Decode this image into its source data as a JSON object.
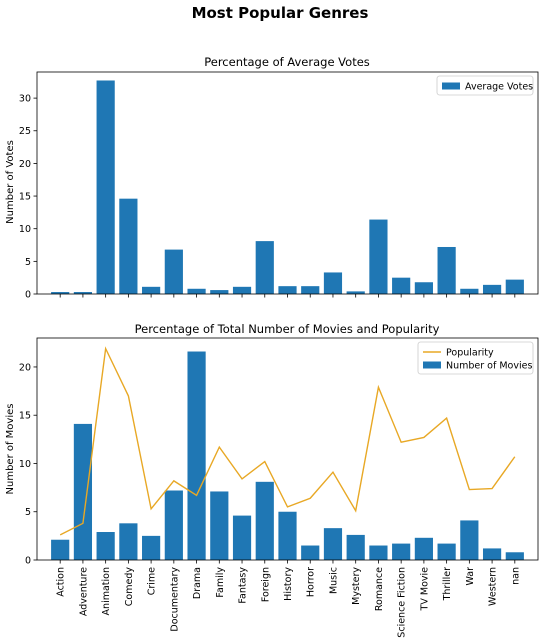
{
  "figure": {
    "title": "Most Popular Genres"
  },
  "colors": {
    "bar": "#1f77b4",
    "line": "#e8a825"
  },
  "chart_data": [
    {
      "type": "bar",
      "title": "Percentage of Average Votes",
      "xlabel": "",
      "ylabel": "Number of Votes",
      "ylim": [
        0,
        34
      ],
      "yticks": [
        0,
        5,
        10,
        15,
        20,
        25,
        30
      ],
      "categories": [
        "Action",
        "Adventure",
        "Animation",
        "Comedy",
        "Crime",
        "Documentary",
        "Drama",
        "Family",
        "Fantasy",
        "Foreign",
        "History",
        "Horror",
        "Music",
        "Mystery",
        "Romance",
        "Science Fiction",
        "TV Movie",
        "Thriller",
        "War",
        "Western",
        "nan"
      ],
      "show_xticklabels": false,
      "series": [
        {
          "name": "Average Votes",
          "kind": "bar",
          "values": [
            0.3,
            0.3,
            32.7,
            14.6,
            1.1,
            6.8,
            0.8,
            0.6,
            1.1,
            8.1,
            1.2,
            1.2,
            3.3,
            0.4,
            11.4,
            2.5,
            1.8,
            7.2,
            0.8,
            1.4,
            2.2
          ]
        }
      ],
      "legend": "top-right",
      "grid": false
    },
    {
      "type": "bar",
      "title": "Percentage of Total Number of Movies and Popularity",
      "xlabel": "",
      "ylabel": "Number of Movies",
      "ylim": [
        0,
        23
      ],
      "yticks": [
        0,
        5,
        10,
        15,
        20
      ],
      "categories": [
        "Action",
        "Adventure",
        "Animation",
        "Comedy",
        "Crime",
        "Documentary",
        "Drama",
        "Family",
        "Fantasy",
        "Foreign",
        "History",
        "Horror",
        "Music",
        "Mystery",
        "Romance",
        "Science Fiction",
        "TV Movie",
        "Thriller",
        "War",
        "Western",
        "nan"
      ],
      "show_xticklabels": true,
      "series": [
        {
          "name": "Popularity",
          "kind": "line",
          "values": [
            2.6,
            3.8,
            21.9,
            17.0,
            5.3,
            8.2,
            6.7,
            11.7,
            8.4,
            10.2,
            5.5,
            6.4,
            9.1,
            5.1,
            17.9,
            12.2,
            12.7,
            14.7,
            7.3,
            7.4,
            10.7
          ]
        },
        {
          "name": "Number of Movies",
          "kind": "bar",
          "values": [
            2.1,
            14.1,
            2.9,
            3.8,
            2.5,
            7.2,
            21.6,
            7.1,
            4.6,
            8.1,
            5.0,
            1.5,
            3.3,
            2.6,
            1.5,
            1.7,
            2.3,
            1.7,
            4.1,
            1.2,
            0.8
          ]
        }
      ],
      "legend": "top-right",
      "grid": false
    }
  ]
}
